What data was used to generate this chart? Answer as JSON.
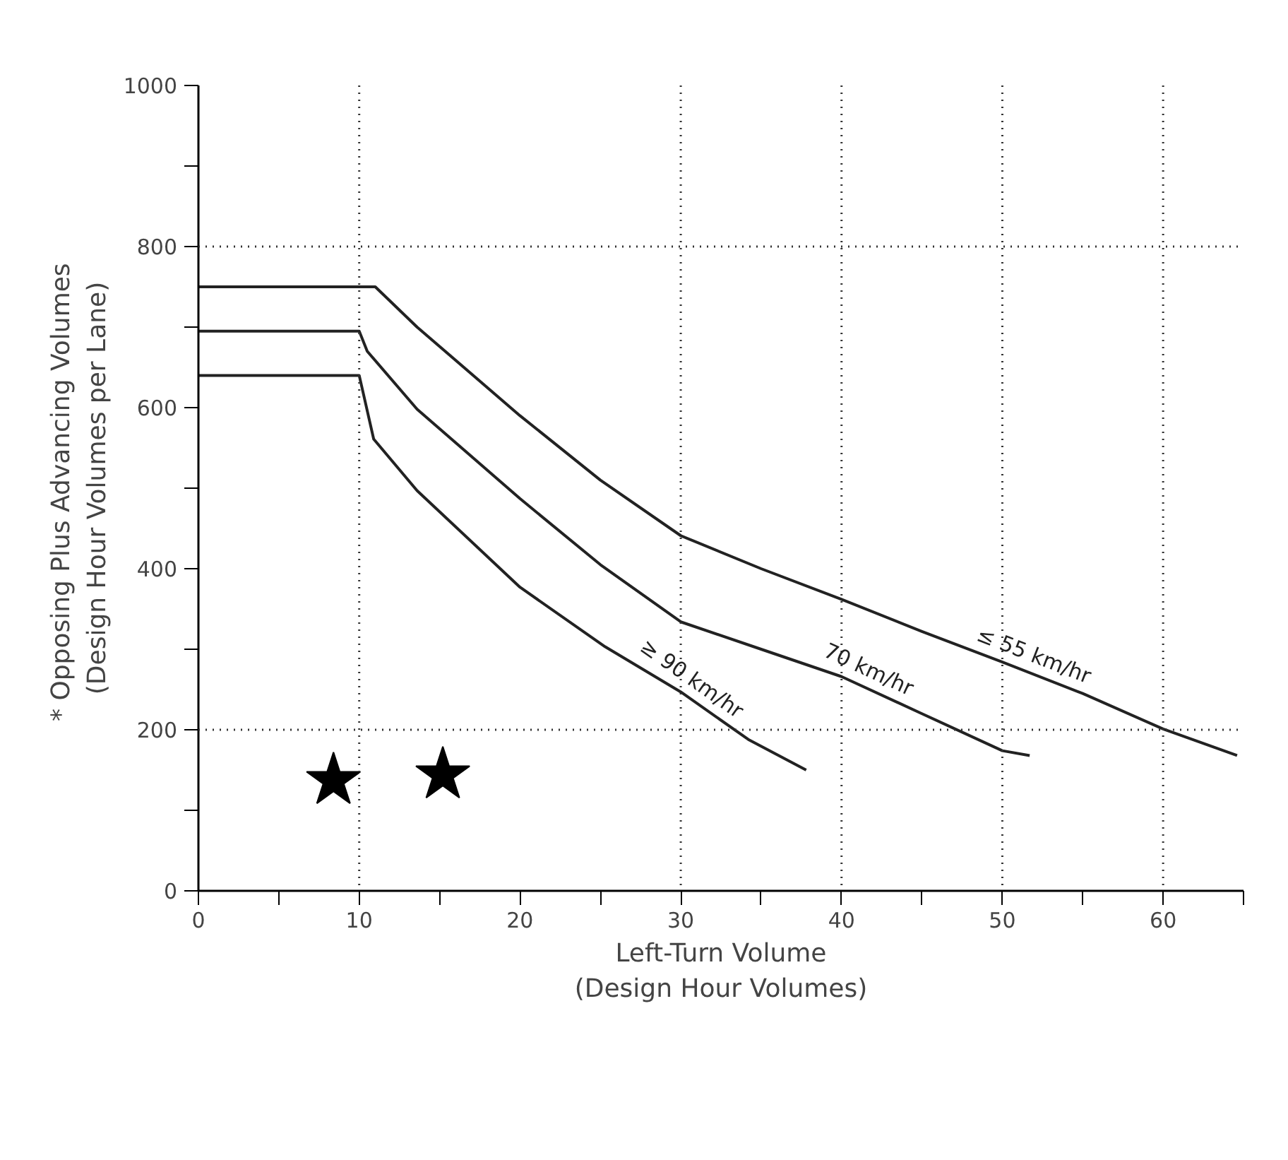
{
  "chart_data": {
    "type": "line",
    "xlabel": "Left-Turn Volume\n(Design Hour Volumes)",
    "ylabel": "*  Opposing Plus Advancing Volumes\n(Design Hour Volumes per Lane)",
    "xlim": [
      0,
      65
    ],
    "ylim": [
      0,
      1000
    ],
    "xticks": [
      0,
      {
        "value": 5,
        "label": null
      },
      10,
      {
        "value": 15,
        "label": null
      },
      20,
      {
        "value": 25,
        "label": null
      },
      30,
      {
        "value": 35,
        "label": null
      },
      40,
      {
        "value": 45,
        "label": null
      },
      50,
      {
        "value": 55,
        "label": null
      },
      60,
      {
        "value": 65,
        "label": null
      }
    ],
    "yticks": [
      0,
      {
        "value": 100,
        "label": null
      },
      200,
      {
        "value": 300,
        "label": null
      },
      400,
      {
        "value": 500,
        "label": null
      },
      600,
      {
        "value": 700,
        "label": null
      },
      800,
      {
        "value": 900,
        "label": null
      },
      1000
    ],
    "grid": false,
    "marker": "none",
    "line_style": "solid",
    "series": [
      {
        "name": "≤ 55 km/hr",
        "color": "#222222",
        "x": [
          0,
          11,
          13.6,
          20,
          25,
          30,
          35,
          40,
          45,
          50,
          55,
          60,
          64.6
        ],
        "values": [
          750,
          750,
          700,
          590,
          510,
          441,
          400,
          362,
          322,
          284,
          245,
          201,
          168
        ]
      },
      {
        "name": "70 km/hr",
        "color": "#222222",
        "x": [
          0,
          10,
          10.5,
          13.6,
          20,
          25,
          30,
          35,
          40,
          45,
          50,
          51.7
        ],
        "values": [
          695,
          695,
          670,
          598,
          487,
          405,
          334,
          300,
          266,
          220,
          174,
          168
        ]
      },
      {
        "name": "≥ 90 km/hr",
        "color": "#222222",
        "x": [
          0,
          10,
          10.9,
          13.6,
          20,
          25.3,
          30,
          34.2,
          37.8
        ],
        "values": [
          640,
          640,
          561,
          497,
          377,
          303,
          247,
          188,
          150
        ]
      },
      {
        "type": "scatter",
        "marker": "star",
        "color": "#000000",
        "x": [
          8.4,
          15.2
        ],
        "values": [
          137,
          144
        ]
      }
    ],
    "ref_lines": [
      {
        "axis": "x",
        "value": 10,
        "line_style": "dotted",
        "color": "#333333"
      },
      {
        "axis": "x",
        "value": 30,
        "line_style": "dotted",
        "color": "#333333"
      },
      {
        "axis": "x",
        "value": 40,
        "line_style": "dotted",
        "color": "#333333"
      },
      {
        "axis": "x",
        "value": 50,
        "line_style": "dotted",
        "color": "#333333"
      },
      {
        "axis": "x",
        "value": 60,
        "line_style": "dotted",
        "color": "#333333"
      },
      {
        "axis": "y",
        "value": 200,
        "line_style": "dotted",
        "color": "#333333"
      },
      {
        "axis": "y",
        "value": 800,
        "line_style": "dotted",
        "color": "#333333"
      }
    ]
  }
}
